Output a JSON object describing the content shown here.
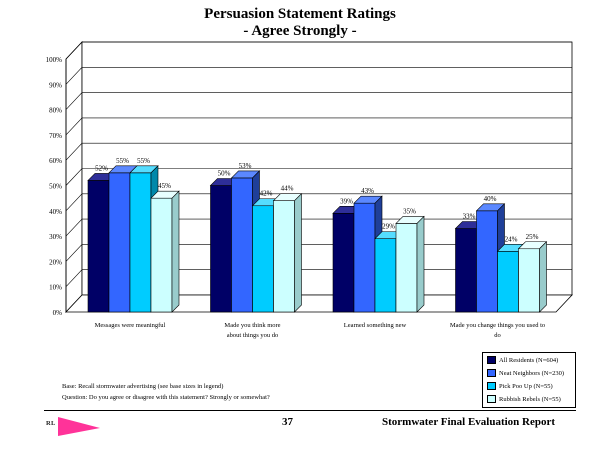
{
  "title": {
    "line1": "Persuasion Statement Ratings",
    "line2": "- Agree Strongly -"
  },
  "colors": {
    "series": [
      "#000066",
      "#3366ff",
      "#00ccff",
      "#ccffff"
    ],
    "tops": [
      "#2e2e99",
      "#5b88ff",
      "#55ddff",
      "#e8ffff"
    ],
    "sides": [
      "#000033",
      "#1f3f99",
      "#0088aa",
      "#99cccc"
    ]
  },
  "chart_data": {
    "type": "bar",
    "title": "Persuasion Statement Ratings - Agree Strongly -",
    "categories": [
      [
        "Messages were meaningful"
      ],
      [
        "Made you think more",
        "about things you do"
      ],
      [
        "Learned something new"
      ],
      [
        "Made you change things you used to",
        "do"
      ]
    ],
    "series": [
      {
        "name": "All Residents (N=604)",
        "values": [
          52,
          50,
          39,
          33
        ]
      },
      {
        "name": "Neat Neighbors (N=230)",
        "values": [
          55,
          53,
          43,
          40
        ]
      },
      {
        "name": "Pick Poo Up (N=55)",
        "values": [
          55,
          42,
          29,
          24
        ]
      },
      {
        "name": "Rubbish Rebels (N=55)",
        "values": [
          45,
          44,
          35,
          25
        ]
      }
    ],
    "yticks": [
      "0%",
      "10%",
      "20%",
      "30%",
      "40%",
      "50%",
      "60%",
      "70%",
      "80%",
      "90%",
      "100%"
    ],
    "ylim": [
      0,
      100
    ],
    "ylabel": "",
    "xlabel": "",
    "grid": true,
    "legend": "bottom-right"
  },
  "notes": {
    "base": "Base:  Recall stormwater advertising (see base sizes in legend)",
    "question": "Question:   Do you agree or disagree with this statement?  Strongly or somewhat?"
  },
  "footer": {
    "page": "37",
    "report": "Stormwater Final Evaluation Report",
    "logo_text": "RL"
  }
}
